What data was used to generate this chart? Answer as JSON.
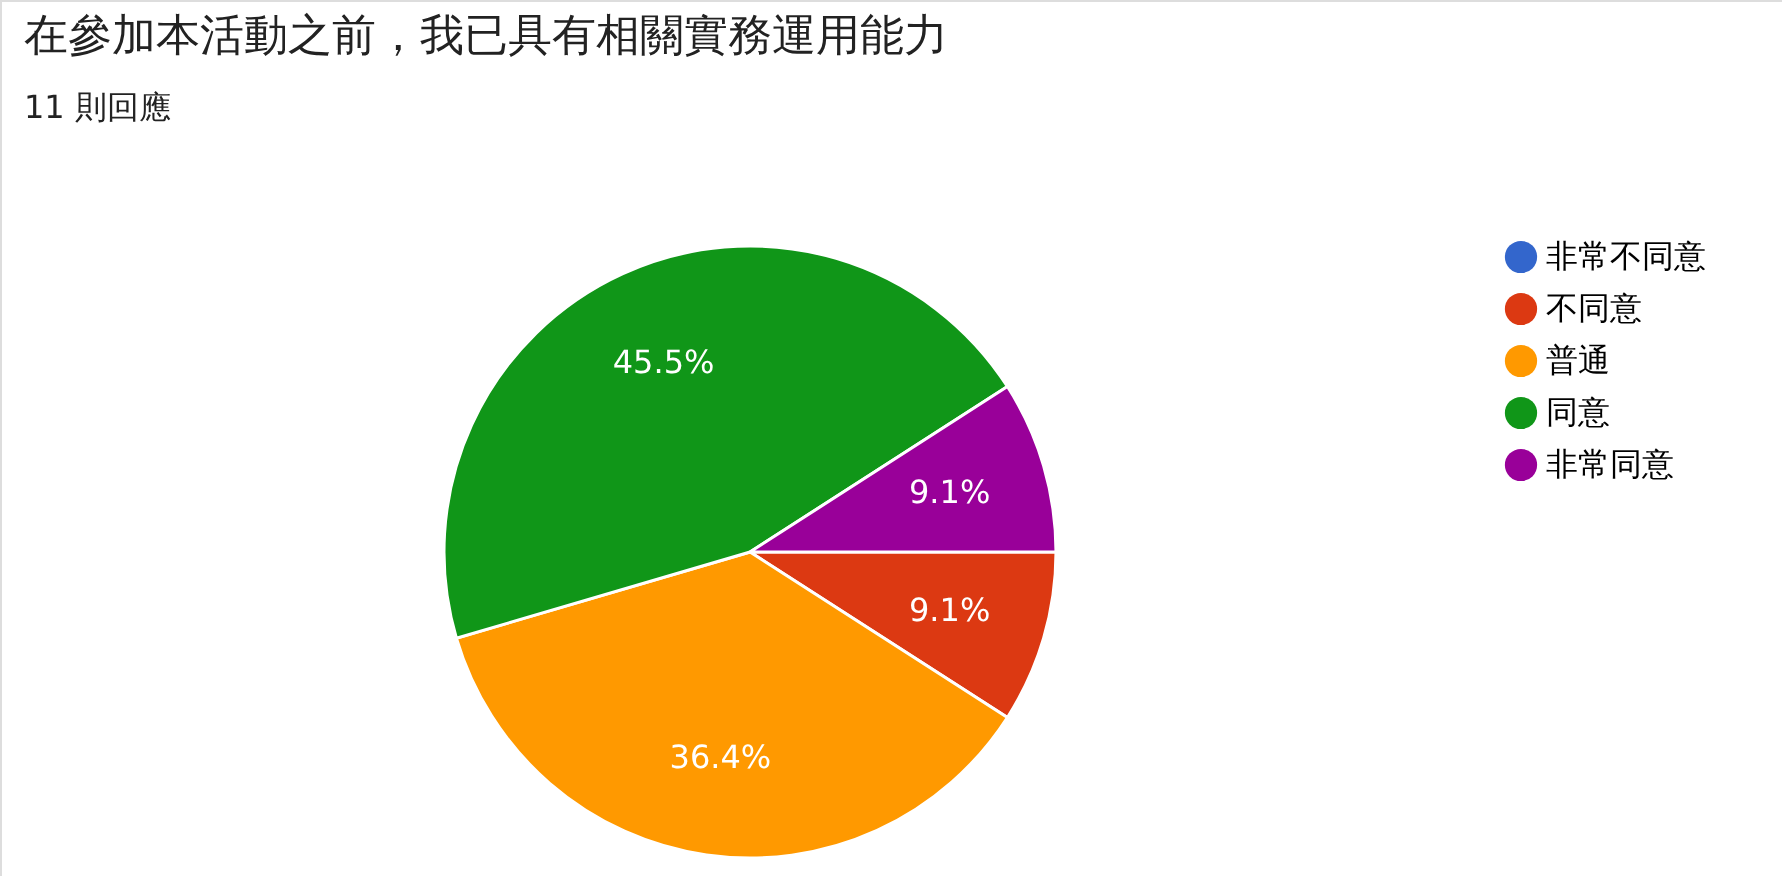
{
  "chart_data": {
    "type": "pie",
    "title": "在參加本活動之前，我已具有相關實務運用能力",
    "subtitle": "11 則回應",
    "categories": [
      "非常不同意",
      "不同意",
      "普通",
      "同意",
      "非常同意"
    ],
    "values": [
      0,
      9.1,
      36.4,
      45.5,
      9.1
    ],
    "colors": [
      "#3366cc",
      "#dc3912",
      "#ff9900",
      "#109618",
      "#990099"
    ],
    "value_labels": [
      null,
      "9.1%",
      "36.4%",
      "45.5%",
      "9.1%"
    ],
    "legend": "right"
  }
}
